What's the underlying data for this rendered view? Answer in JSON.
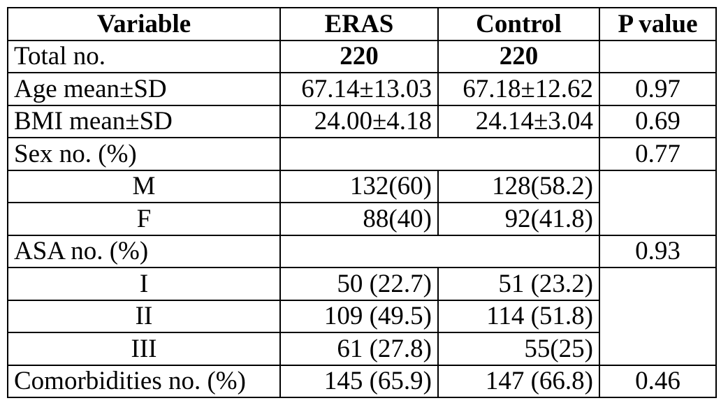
{
  "headers": [
    "Variable",
    "ERAS",
    "Control",
    "P value"
  ],
  "rows": {
    "total": {
      "label": "Total no.",
      "eras": "220",
      "control": "220",
      "p": ""
    },
    "age": {
      "label": "Age mean±SD",
      "eras": "67.14±13.03",
      "control": "67.18±12.62",
      "p": "0.97"
    },
    "bmi": {
      "label": "BMI mean±SD",
      "eras": "24.00±4.18",
      "control": "24.14±3.04",
      "p": "0.69"
    },
    "sex": {
      "label": "Sex no. (%)",
      "p": "0.77"
    },
    "sex_m": {
      "label": "M",
      "eras": "132(60)",
      "control": "128(58.2)"
    },
    "sex_f": {
      "label": "F",
      "eras": "88(40)",
      "control": "92(41.8)"
    },
    "asa": {
      "label": "ASA no. (%)",
      "p": "0.93"
    },
    "asa_1": {
      "label": "I",
      "eras": "50 (22.7)",
      "control": "51 (23.2)"
    },
    "asa_2": {
      "label": "II",
      "eras": "109 (49.5)",
      "control": "114 (51.8)"
    },
    "asa_3": {
      "label": "III",
      "eras": "61 (27.8)",
      "control": "55(25)"
    },
    "comorb": {
      "label": "Comorbidities no. (%)",
      "eras": "145 (65.9)",
      "control": "147 (66.8)",
      "p": "0.46"
    }
  }
}
